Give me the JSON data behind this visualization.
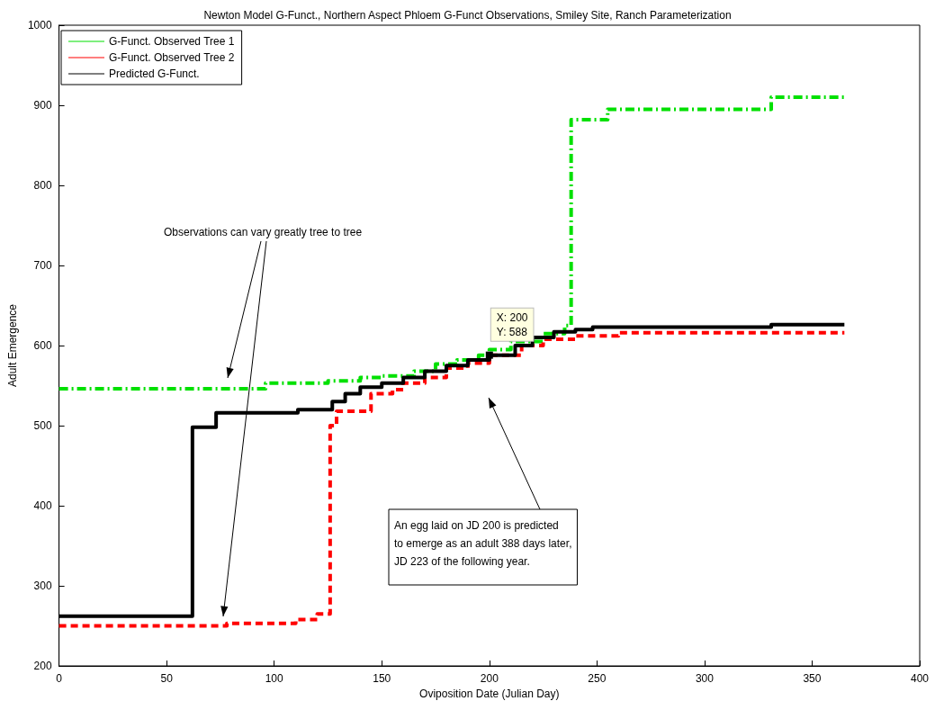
{
  "chart_data": {
    "type": "step",
    "title": "Newton Model G-Funct., Northern Aspect Phloem G-Funct Observations, Smiley Site, Ranch Parameterization",
    "xlabel": "Oviposition Date (Julian Day)",
    "ylabel": "Adult Emergence",
    "xlim": [
      0,
      400
    ],
    "xticks": [
      0,
      50,
      100,
      150,
      200,
      250,
      300,
      350,
      400
    ],
    "ylim": [
      200,
      1000
    ],
    "yticks": [
      200,
      300,
      400,
      500,
      600,
      700,
      800,
      900,
      1000
    ],
    "grid": false,
    "legend": "top left",
    "marker": "none",
    "series": [
      {
        "name": "G-Funct. Observed Tree 1",
        "color": "#00e000",
        "line_style": "dashdot",
        "x": [
          0,
          96,
          125,
          140,
          150,
          165,
          175,
          185,
          195,
          200,
          210,
          225,
          235,
          238,
          255,
          331,
          365
        ],
        "values": [
          546,
          553,
          556,
          560,
          562,
          568,
          577,
          582,
          588,
          595,
          605,
          615,
          625,
          882,
          895,
          910,
          910
        ]
      },
      {
        "name": "G-Funct. Observed Tree 2",
        "color": "#ff0000",
        "line_style": "dashed",
        "x": [
          0,
          78,
          110,
          120,
          126,
          129,
          145,
          155,
          160,
          170,
          180,
          190,
          200,
          215,
          225,
          240,
          260,
          365
        ],
        "values": [
          250,
          253,
          258,
          265,
          500,
          518,
          540,
          545,
          553,
          560,
          572,
          578,
          588,
          600,
          608,
          612,
          616,
          616
        ]
      },
      {
        "name": "Predicted G-Funct.",
        "color": "#000000",
        "line_style": "solid",
        "x": [
          0,
          62,
          73,
          111,
          127,
          133,
          140,
          150,
          160,
          170,
          180,
          190,
          200,
          212,
          220,
          230,
          240,
          248,
          331,
          365
        ],
        "values": [
          262,
          498,
          516,
          520,
          530,
          540,
          548,
          553,
          560,
          568,
          575,
          582,
          588,
          600,
          610,
          617,
          620,
          623,
          626,
          626
        ]
      }
    ],
    "annotations": [
      "Observations can vary greatly tree to tree",
      {
        "text": "X: 200\nY: 588",
        "x": 200,
        "y": 588
      },
      "An egg laid on JD 200 is predicted\nto emerge as an adult 388 days later,\nJD 223 of the following year."
    ]
  }
}
